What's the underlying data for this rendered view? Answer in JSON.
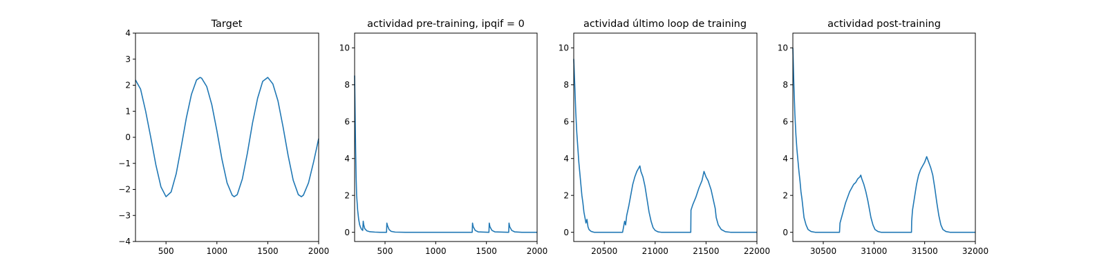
{
  "figure": {
    "background": "#ffffff",
    "line_color": "#1f77b4"
  },
  "chart_data": [
    {
      "type": "line",
      "title": "Target",
      "xlabel": "",
      "ylabel": "",
      "xlim": [
        200,
        2000
      ],
      "ylim": [
        -4,
        4
      ],
      "xticks": [
        500,
        1000,
        1500,
        2000
      ],
      "yticks": [
        -4,
        -3,
        -2,
        -1,
        0,
        1,
        2,
        3,
        4
      ],
      "xtick_labels": [
        "500",
        "1000",
        "1500",
        "2000"
      ],
      "ytick_labels": [
        "−4",
        "−3",
        "−2",
        "−1",
        "0",
        "1",
        "2",
        "3",
        "4"
      ],
      "grid": false,
      "series": [
        {
          "color": "#1f77b4",
          "points": [
            [
              200,
              2.2
            ],
            [
              250,
              1.85
            ],
            [
              300,
              1.0
            ],
            [
              350,
              0.0
            ],
            [
              400,
              -1.05
            ],
            [
              450,
              -1.9
            ],
            [
              500,
              -2.28
            ],
            [
              550,
              -2.1
            ],
            [
              600,
              -1.4
            ],
            [
              650,
              -0.35
            ],
            [
              700,
              0.75
            ],
            [
              750,
              1.65
            ],
            [
              800,
              2.2
            ],
            [
              835,
              2.3
            ],
            [
              850,
              2.27
            ],
            [
              900,
              1.95
            ],
            [
              950,
              1.25
            ],
            [
              1000,
              0.25
            ],
            [
              1050,
              -0.85
            ],
            [
              1100,
              -1.75
            ],
            [
              1150,
              -2.22
            ],
            [
              1170,
              -2.28
            ],
            [
              1200,
              -2.2
            ],
            [
              1250,
              -1.6
            ],
            [
              1300,
              -0.6
            ],
            [
              1350,
              0.55
            ],
            [
              1400,
              1.5
            ],
            [
              1450,
              2.15
            ],
            [
              1500,
              2.3
            ],
            [
              1550,
              2.05
            ],
            [
              1600,
              1.4
            ],
            [
              1650,
              0.4
            ],
            [
              1700,
              -0.7
            ],
            [
              1750,
              -1.65
            ],
            [
              1800,
              -2.2
            ],
            [
              1830,
              -2.28
            ],
            [
              1850,
              -2.22
            ],
            [
              1900,
              -1.75
            ],
            [
              1950,
              -0.95
            ],
            [
              2000,
              -0.05
            ]
          ]
        }
      ]
    },
    {
      "type": "line",
      "title": "actividad pre-training, ipqif = 0",
      "xlabel": "",
      "ylabel": "",
      "xlim": [
        200,
        2000
      ],
      "ylim": [
        -0.5,
        10.8
      ],
      "xticks": [
        500,
        1000,
        1500,
        2000
      ],
      "yticks": [
        0,
        2,
        4,
        6,
        8,
        10
      ],
      "xtick_labels": [
        "500",
        "1000",
        "1500",
        "2000"
      ],
      "ytick_labels": [
        "0",
        "2",
        "4",
        "6",
        "8",
        "10"
      ],
      "grid": false,
      "series": [
        {
          "color": "#1f77b4",
          "points": [
            [
              200,
              8.5
            ],
            [
              205,
              6.5
            ],
            [
              210,
              4.5
            ],
            [
              215,
              3.0
            ],
            [
              220,
              2.0
            ],
            [
              230,
              1.2
            ],
            [
              240,
              0.7
            ],
            [
              250,
              0.4
            ],
            [
              260,
              0.25
            ],
            [
              270,
              0.15
            ],
            [
              280,
              0.1
            ],
            [
              285,
              0.6
            ],
            [
              290,
              0.4
            ],
            [
              300,
              0.2
            ],
            [
              320,
              0.08
            ],
            [
              350,
              0.03
            ],
            [
              400,
              0.01
            ],
            [
              450,
              0.0
            ],
            [
              515,
              0.0
            ],
            [
              518,
              0.5
            ],
            [
              525,
              0.35
            ],
            [
              540,
              0.15
            ],
            [
              560,
              0.05
            ],
            [
              600,
              0.01
            ],
            [
              700,
              0.0
            ],
            [
              1360,
              0.0
            ],
            [
              1363,
              0.5
            ],
            [
              1370,
              0.3
            ],
            [
              1390,
              0.1
            ],
            [
              1420,
              0.02
            ],
            [
              1525,
              0.0
            ],
            [
              1528,
              0.5
            ],
            [
              1535,
              0.3
            ],
            [
              1555,
              0.1
            ],
            [
              1585,
              0.02
            ],
            [
              1720,
              0.0
            ],
            [
              1723,
              0.5
            ],
            [
              1730,
              0.3
            ],
            [
              1750,
              0.1
            ],
            [
              1780,
              0.02
            ],
            [
              1850,
              0.0
            ],
            [
              2000,
              0.0
            ]
          ]
        }
      ]
    },
    {
      "type": "line",
      "title": "actividad último loop de training",
      "xlabel": "",
      "ylabel": "",
      "xlim": [
        20200,
        22000
      ],
      "ylim": [
        -0.5,
        10.8
      ],
      "xticks": [
        20500,
        21000,
        21500,
        22000
      ],
      "yticks": [
        0,
        2,
        4,
        6,
        8,
        10
      ],
      "xtick_labels": [
        "20500",
        "21000",
        "21500",
        "22000"
      ],
      "ytick_labels": [
        "0",
        "2",
        "4",
        "6",
        "8",
        "10"
      ],
      "grid": false,
      "series": [
        {
          "color": "#1f77b4",
          "points": [
            [
              20200,
              9.4
            ],
            [
              20210,
              8.0
            ],
            [
              20220,
              6.5
            ],
            [
              20230,
              5.4
            ],
            [
              20240,
              4.6
            ],
            [
              20250,
              3.8
            ],
            [
              20260,
              3.2
            ],
            [
              20270,
              2.6
            ],
            [
              20280,
              2.0
            ],
            [
              20290,
              1.6
            ],
            [
              20300,
              1.1
            ],
            [
              20310,
              0.8
            ],
            [
              20320,
              0.5
            ],
            [
              20330,
              0.7
            ],
            [
              20340,
              0.3
            ],
            [
              20350,
              0.15
            ],
            [
              20370,
              0.05
            ],
            [
              20400,
              0.0
            ],
            [
              20680,
              0.0
            ],
            [
              20690,
              0.3
            ],
            [
              20700,
              0.6
            ],
            [
              20710,
              0.4
            ],
            [
              20720,
              0.9
            ],
            [
              20740,
              1.4
            ],
            [
              20760,
              2.0
            ],
            [
              20780,
              2.6
            ],
            [
              20800,
              3.0
            ],
            [
              20820,
              3.3
            ],
            [
              20840,
              3.5
            ],
            [
              20850,
              3.6
            ],
            [
              20860,
              3.3
            ],
            [
              20880,
              3.0
            ],
            [
              20900,
              2.5
            ],
            [
              20920,
              1.8
            ],
            [
              20940,
              1.1
            ],
            [
              20960,
              0.6
            ],
            [
              20980,
              0.25
            ],
            [
              21000,
              0.1
            ],
            [
              21030,
              0.02
            ],
            [
              21060,
              0.0
            ],
            [
              21350,
              0.0
            ],
            [
              21352,
              1.2
            ],
            [
              21370,
              1.5
            ],
            [
              21400,
              1.9
            ],
            [
              21430,
              2.4
            ],
            [
              21460,
              2.8
            ],
            [
              21480,
              3.3
            ],
            [
              21500,
              3.0
            ],
            [
              21520,
              2.8
            ],
            [
              21550,
              2.3
            ],
            [
              21570,
              1.8
            ],
            [
              21590,
              1.3
            ],
            [
              21600,
              0.8
            ],
            [
              21620,
              0.4
            ],
            [
              21650,
              0.15
            ],
            [
              21690,
              0.03
            ],
            [
              21740,
              0.0
            ],
            [
              22000,
              0.0
            ]
          ]
        }
      ]
    },
    {
      "type": "line",
      "title": "actividad post-training",
      "xlabel": "",
      "ylabel": "",
      "xlim": [
        30200,
        32000
      ],
      "ylim": [
        -0.5,
        10.8
      ],
      "xticks": [
        30500,
        31000,
        31500,
        32000
      ],
      "yticks": [
        0,
        2,
        4,
        6,
        8,
        10
      ],
      "xtick_labels": [
        "30500",
        "31000",
        "31500",
        "32000"
      ],
      "ytick_labels": [
        "0",
        "2",
        "4",
        "6",
        "8",
        "10"
      ],
      "grid": false,
      "series": [
        {
          "color": "#1f77b4",
          "points": [
            [
              30200,
              10.0
            ],
            [
              30210,
              8.0
            ],
            [
              30220,
              6.4
            ],
            [
              30230,
              5.3
            ],
            [
              30240,
              4.5
            ],
            [
              30250,
              3.9
            ],
            [
              30260,
              3.3
            ],
            [
              30270,
              2.8
            ],
            [
              30280,
              2.2
            ],
            [
              30290,
              1.8
            ],
            [
              30300,
              1.3
            ],
            [
              30310,
              0.8
            ],
            [
              30330,
              0.4
            ],
            [
              30350,
              0.15
            ],
            [
              30380,
              0.04
            ],
            [
              30420,
              0.0
            ],
            [
              30660,
              0.0
            ],
            [
              30665,
              0.5
            ],
            [
              30680,
              0.8
            ],
            [
              30700,
              1.2
            ],
            [
              30720,
              1.6
            ],
            [
              30740,
              1.9
            ],
            [
              30760,
              2.2
            ],
            [
              30780,
              2.4
            ],
            [
              30800,
              2.6
            ],
            [
              30820,
              2.7
            ],
            [
              30840,
              2.9
            ],
            [
              30860,
              3.0
            ],
            [
              30870,
              3.1
            ],
            [
              30880,
              2.9
            ],
            [
              30900,
              2.6
            ],
            [
              30920,
              2.2
            ],
            [
              30940,
              1.7
            ],
            [
              30960,
              1.1
            ],
            [
              30970,
              0.8
            ],
            [
              30990,
              0.4
            ],
            [
              31010,
              0.15
            ],
            [
              31040,
              0.04
            ],
            [
              31070,
              0.0
            ],
            [
              31370,
              0.0
            ],
            [
              31372,
              0.6
            ],
            [
              31380,
              1.2
            ],
            [
              31400,
              1.9
            ],
            [
              31420,
              2.6
            ],
            [
              31440,
              3.1
            ],
            [
              31460,
              3.4
            ],
            [
              31480,
              3.6
            ],
            [
              31500,
              3.8
            ],
            [
              31520,
              4.1
            ],
            [
              31540,
              3.8
            ],
            [
              31560,
              3.5
            ],
            [
              31580,
              3.1
            ],
            [
              31600,
              2.4
            ],
            [
              31620,
              1.6
            ],
            [
              31640,
              0.9
            ],
            [
              31660,
              0.4
            ],
            [
              31680,
              0.15
            ],
            [
              31710,
              0.04
            ],
            [
              31750,
              0.0
            ],
            [
              32000,
              0.0
            ]
          ]
        }
      ]
    }
  ]
}
